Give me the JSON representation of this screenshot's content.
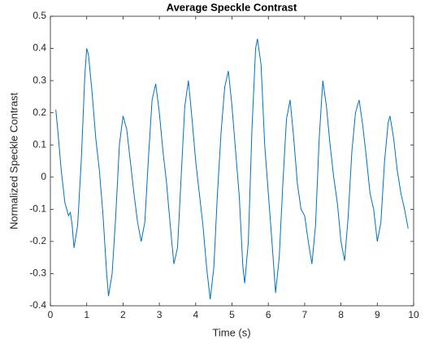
{
  "chart_data": {
    "type": "line",
    "title": "Average Speckle Contrast",
    "xlabel": "Time (s)",
    "ylabel": "Normalized Speckle Contrast",
    "x": [
      0.15,
      0.2,
      0.3,
      0.4,
      0.5,
      0.55,
      0.6,
      0.65,
      0.75,
      0.85,
      0.95,
      1.0,
      1.05,
      1.15,
      1.25,
      1.35,
      1.45,
      1.55,
      1.6,
      1.7,
      1.8,
      1.9,
      2.0,
      2.1,
      2.2,
      2.3,
      2.4,
      2.5,
      2.6,
      2.7,
      2.8,
      2.9,
      3.0,
      3.1,
      3.2,
      3.3,
      3.4,
      3.5,
      3.6,
      3.7,
      3.8,
      3.9,
      4.0,
      4.1,
      4.2,
      4.3,
      4.4,
      4.5,
      4.6,
      4.7,
      4.8,
      4.9,
      5.0,
      5.1,
      5.2,
      5.3,
      5.35,
      5.45,
      5.55,
      5.65,
      5.7,
      5.8,
      5.9,
      6.0,
      6.1,
      6.2,
      6.3,
      6.4,
      6.5,
      6.6,
      6.7,
      6.8,
      6.9,
      7.0,
      7.1,
      7.2,
      7.3,
      7.4,
      7.5,
      7.6,
      7.7,
      7.8,
      7.9,
      8.0,
      8.1,
      8.2,
      8.3,
      8.4,
      8.5,
      8.6,
      8.7,
      8.8,
      8.9,
      9.0,
      9.1,
      9.2,
      9.3,
      9.35,
      9.45,
      9.55,
      9.65,
      9.75,
      9.85
    ],
    "series": [
      {
        "name": "Average Speckle Contrast",
        "color": "#0072bd",
        "values": [
          0.21,
          0.15,
          0.02,
          -0.08,
          -0.12,
          -0.11,
          -0.15,
          -0.22,
          -0.15,
          0.05,
          0.32,
          0.4,
          0.38,
          0.26,
          0.12,
          0.02,
          -0.12,
          -0.3,
          -0.37,
          -0.3,
          -0.12,
          0.1,
          0.19,
          0.15,
          0.05,
          -0.05,
          -0.14,
          -0.2,
          -0.14,
          0.06,
          0.24,
          0.29,
          0.2,
          0.08,
          -0.02,
          -0.15,
          -0.27,
          -0.22,
          0.0,
          0.22,
          0.3,
          0.18,
          0.05,
          -0.05,
          -0.15,
          -0.28,
          -0.38,
          -0.28,
          -0.05,
          0.14,
          0.28,
          0.33,
          0.22,
          0.08,
          -0.06,
          -0.28,
          -0.33,
          -0.2,
          0.15,
          0.4,
          0.43,
          0.35,
          0.1,
          -0.05,
          -0.2,
          -0.36,
          -0.25,
          -0.02,
          0.18,
          0.24,
          0.12,
          -0.02,
          -0.1,
          -0.12,
          -0.2,
          -0.27,
          -0.15,
          0.12,
          0.3,
          0.22,
          0.1,
          0.0,
          -0.08,
          -0.2,
          -0.26,
          -0.12,
          0.08,
          0.2,
          0.24,
          0.16,
          0.06,
          -0.05,
          -0.1,
          -0.2,
          -0.14,
          0.05,
          0.17,
          0.19,
          0.12,
          0.02,
          -0.05,
          -0.1,
          -0.16
        ]
      }
    ],
    "xlim": [
      0,
      10
    ],
    "xticks": [
      0,
      1,
      2,
      3,
      4,
      5,
      6,
      7,
      8,
      9,
      10
    ],
    "ylim": [
      -0.4,
      0.5
    ],
    "yticks": [
      -0.4,
      -0.3,
      -0.2,
      -0.1,
      0,
      0.1,
      0.2,
      0.3,
      0.4,
      0.5
    ],
    "grid": false
  }
}
